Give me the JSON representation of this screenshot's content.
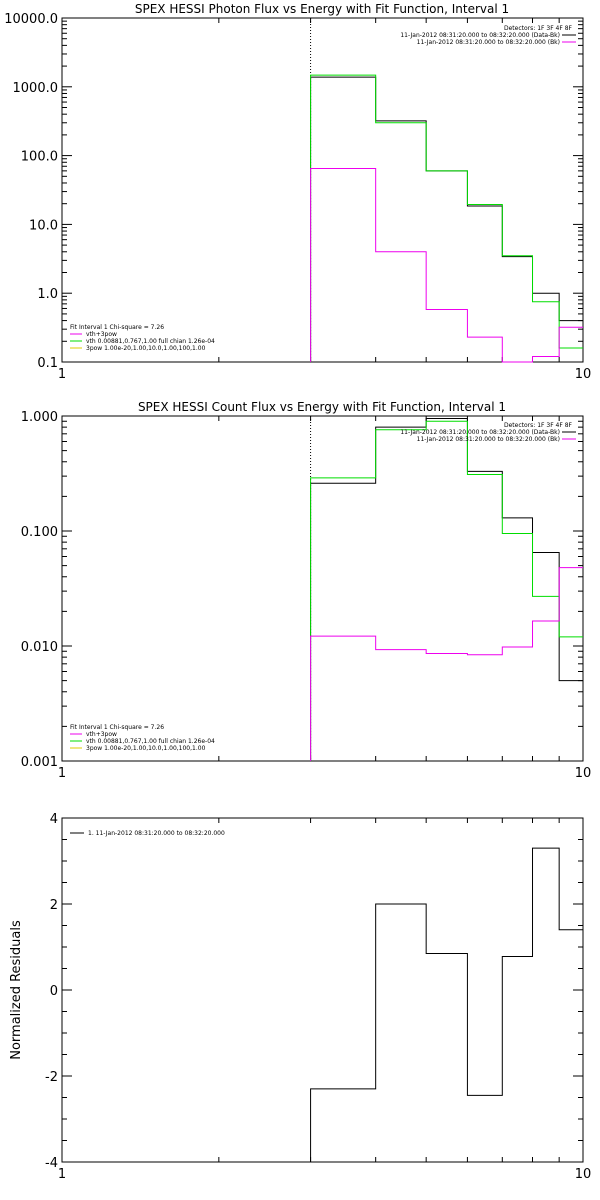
{
  "colors": {
    "data": "#000000",
    "total": "#00dd00",
    "background": "#ee00ee"
  },
  "chart_data": [
    {
      "type": "line",
      "title": "SPEX HESSI Photon Flux vs Energy with Fit Function, Interval 1",
      "ylabel": "",
      "xlim": [
        1,
        10
      ],
      "x_scale": "log",
      "ylim": [
        0.1,
        10000
      ],
      "y_scale": "log",
      "xticks": [
        "1",
        "10"
      ],
      "yticks": [
        "0.1",
        "1.0",
        "10.0",
        "100.0",
        "1000.0",
        "10000.0"
      ],
      "marker_x": 3,
      "bin_edges": [
        3,
        4,
        5,
        6,
        7,
        8,
        9,
        10
      ],
      "legend_right": [
        "Detectors: 1F 3F 4F 8F",
        "11-Jan-2012 08:31:20.000 to 08:32:20.000 (Data-Bk)",
        "11-Jan-2012 08:31:20.000 to 08:32:20.000 (Bk)"
      ],
      "legend_left": [
        "Fit Interval 1   Chi-square = 7.26",
        "vth+3pow",
        "vth 0.00881,0.767,1.00   full chian 1.26e-04",
        "3pow 1.00e-20,1.00,10.0,1.00,100,1.00"
      ],
      "series": [
        {
          "name": "11-Jan-2012 08:31:20.000 to 08:32:20.000 (Data-Bk)",
          "color": "#000000",
          "values": [
            1380,
            320,
            60,
            18.5,
            3.4,
            1.0,
            0.4
          ]
        },
        {
          "name": "vth+3pow",
          "color": "#00dd00",
          "values": [
            1480,
            300,
            60,
            19.5,
            3.5,
            0.75,
            0.16
          ]
        },
        {
          "name": "11-Jan-2012 08:31:20.000 to 08:32:20.000 (Bk)",
          "color": "#ee00ee",
          "values": [
            65,
            4.0,
            0.58,
            0.23,
            0.09,
            0.12,
            0.32
          ]
        }
      ]
    },
    {
      "type": "line",
      "title": "SPEX HESSI Count Flux vs Energy with Fit Function, Interval 1",
      "ylabel": "",
      "xlim": [
        1,
        10
      ],
      "x_scale": "log",
      "ylim": [
        0.001,
        1.0
      ],
      "y_scale": "log",
      "xticks": [
        "1",
        "10"
      ],
      "yticks": [
        "0.001",
        "0.010",
        "0.100",
        "1.000"
      ],
      "marker_x": 3,
      "bin_edges": [
        3,
        4,
        5,
        6,
        7,
        8,
        9,
        10
      ],
      "legend_right": [
        "Detectors: 1F 3F 4F 8F",
        "11-Jan-2012 08:31:20.000 to 08:32:20.000 (Data-Bk)",
        "11-Jan-2012 08:31:20.000 to 08:32:20.000 (Bk)"
      ],
      "legend_left": [
        "Fit Interval 1   Chi-square = 7.26",
        "vth+3pow",
        "vth 0.00881,0.767,1.00   full chian 1.26e-04",
        "3pow 1.00e-20,1.00,10.0,1.00,100,1.00"
      ],
      "series": [
        {
          "name": "11-Jan-2012 08:31:20.000 to 08:32:20.000 (Data-Bk)",
          "color": "#000000",
          "values": [
            0.26,
            0.8,
            0.95,
            0.33,
            0.13,
            0.065,
            0.005
          ]
        },
        {
          "name": "vth+3pow",
          "color": "#00dd00",
          "values": [
            0.29,
            0.76,
            0.9,
            0.31,
            0.095,
            0.027,
            0.012
          ]
        },
        {
          "name": "11-Jan-2012 08:31:20.000 to 08:32:20.000 (Bk)",
          "color": "#ee00ee",
          "values": [
            0.0122,
            0.0093,
            0.0086,
            0.0084,
            0.0098,
            0.0165,
            0.048
          ]
        }
      ]
    },
    {
      "type": "line",
      "title": "",
      "ylabel": "Normalized Residuals",
      "xlim": [
        1,
        10
      ],
      "x_scale": "log",
      "ylim": [
        -4,
        4
      ],
      "y_scale": "linear",
      "xticks": [
        "1",
        "10"
      ],
      "yticks": [
        "-4",
        "-2",
        "0",
        "2",
        "4"
      ],
      "bin_edges": [
        3,
        4,
        5,
        6,
        7,
        8,
        9,
        10
      ],
      "legend_left": [
        "1. 11-Jan-2012 08:31:20.000 to 08:32:20.000"
      ],
      "series": [
        {
          "name": "1. 11-Jan-2012 08:31:20.000 to 08:32:20.000",
          "color": "#000000",
          "values": [
            -2.3,
            2.0,
            0.85,
            -2.45,
            0.78,
            3.3,
            1.4
          ]
        }
      ]
    }
  ]
}
